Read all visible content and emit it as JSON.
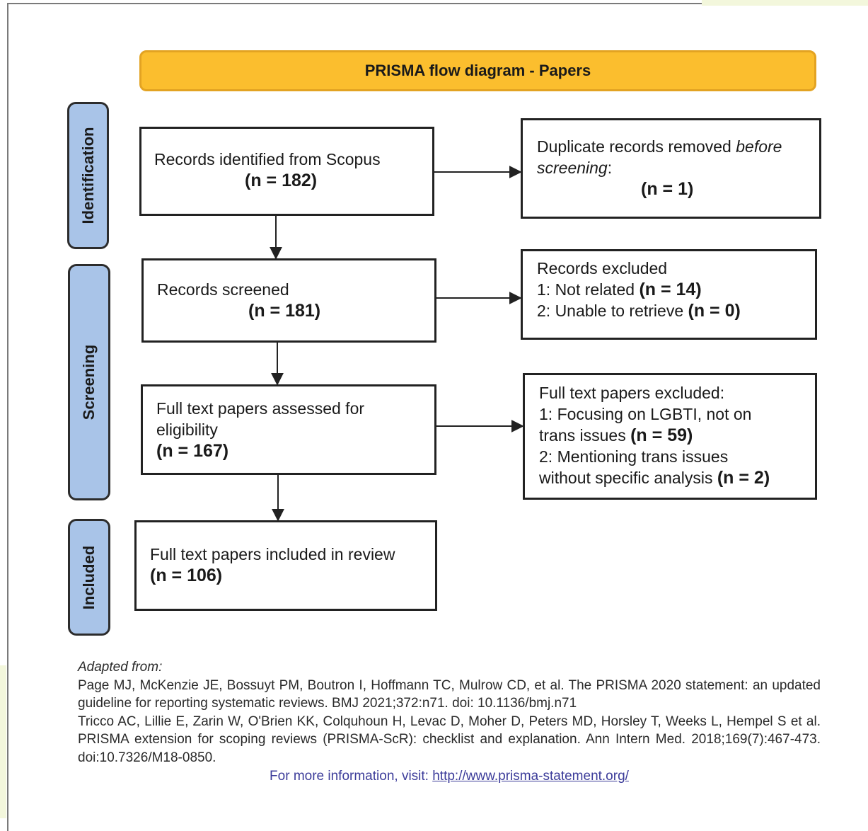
{
  "title": "PRISMA flow diagram - Papers",
  "stages": {
    "identification": "Identification",
    "screening": "Screening",
    "included": "Included"
  },
  "boxes": {
    "identified": {
      "text": "Records identified from Scopus",
      "count": "(n = 182)"
    },
    "duplicates": {
      "text_prefix": "Duplicate records removed ",
      "text_italic": "before",
      "text_italic_2": "screening",
      "text_suffix": ":",
      "count": "(n = 1)"
    },
    "screened": {
      "text": "Records screened",
      "count": "(n = 181)"
    },
    "excluded": {
      "heading": "Records excluded",
      "item1_text": "1: Not related ",
      "item1_count": "(n = 14)",
      "item2_text": "2: Unable to retrieve ",
      "item2_count": "(n = 0)"
    },
    "assessed": {
      "line1": "Full text papers assessed for",
      "line2": "eligibility",
      "count": "(n = 167)"
    },
    "fulltext_excluded": {
      "heading": "Full text papers excluded:",
      "item1_line1": "1: Focusing on LGBTI, not on",
      "item1_line2": "trans issues ",
      "item1_count": "(n = 59)",
      "item2_line1": "2: Mentioning trans issues",
      "item2_line2": "without specific analysis ",
      "item2_count": "(n = 2)"
    },
    "included": {
      "text": "Full text papers included in review",
      "count": "(n = 106)"
    }
  },
  "references": {
    "adapted_from": "Adapted from:",
    "ref1": "Page MJ, McKenzie JE, Bossuyt PM, Boutron I, Hoffmann TC, Mulrow CD, et al. The PRISMA 2020 statement: an updated guideline for reporting systematic reviews. BMJ 2021;372:n71. doi: 10.1136/bmj.n71",
    "ref2": "Tricco AC, Lillie E, Zarin W, O'Brien KK, Colquhoun H, Levac D, Moher D, Peters MD, Horsley T, Weeks L, Hempel S et al. PRISMA extension for scoping reviews (PRISMA-ScR): checklist and explanation. Ann Intern Med. 2018;169(7):467-473. doi:10.7326/M18-0850.",
    "more_info_label": "For more information, visit: ",
    "more_info_link": "http://www.prisma-statement.org/"
  },
  "colors": {
    "title_fill": "#fbbe2e",
    "title_border": "#e3a322",
    "stage_fill": "#a9c4e8",
    "box_border": "#222222",
    "link": "#3c3c9a",
    "corner_tint": "#f3f7dc"
  }
}
